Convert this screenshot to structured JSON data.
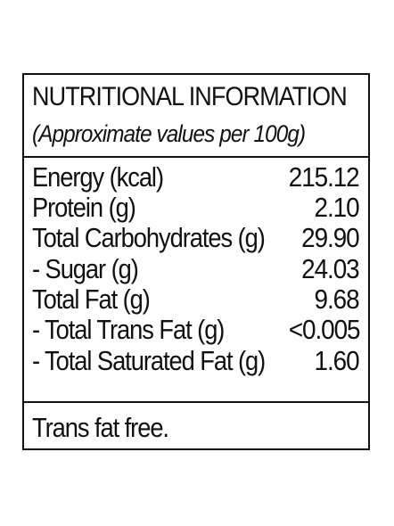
{
  "header": {
    "title": "NUTRITIONAL INFORMATION",
    "subtitle": "(Approximate values per 100g)"
  },
  "rows": [
    {
      "label": "Energy (kcal)",
      "value": "215.12"
    },
    {
      "label": "Protein (g)",
      "value": "2.10"
    },
    {
      "label": "Total Carbohydrates (g)",
      "value": "29.90"
    },
    {
      "label": "- Sugar (g)",
      "value": "24.03"
    },
    {
      "label": "Total Fat (g)",
      "value": "9.68"
    },
    {
      "label": "- Total Trans Fat (g)",
      "value": "<0.005"
    },
    {
      "label": "- Total Saturated Fat (g)",
      "value": "1.60"
    }
  ],
  "footer": {
    "note": "Trans fat free."
  }
}
